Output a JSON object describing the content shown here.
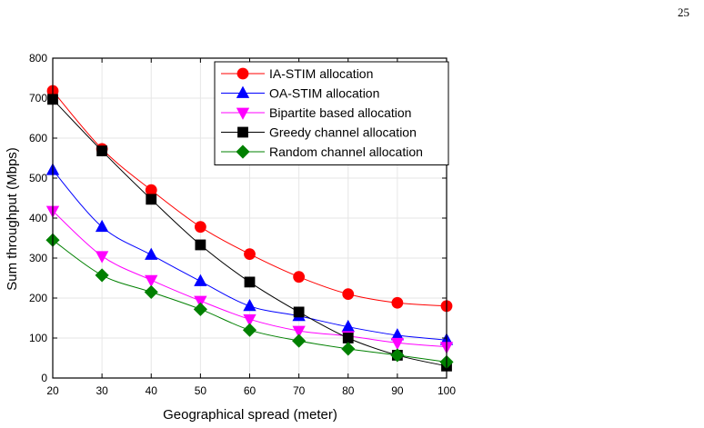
{
  "page": {
    "number": "25"
  },
  "chart_data": {
    "type": "line",
    "xlabel": "Geographical spread (meter)",
    "ylabel": "Sum throughput (Mbps)",
    "x": [
      20,
      30,
      40,
      50,
      60,
      70,
      80,
      90,
      100
    ],
    "xlim": [
      20,
      100
    ],
    "ylim": [
      0,
      800
    ],
    "xticks": [
      20,
      30,
      40,
      50,
      60,
      70,
      80,
      90,
      100
    ],
    "yticks": [
      0,
      100,
      200,
      300,
      400,
      500,
      600,
      700,
      800
    ],
    "grid": true,
    "legend_position": "top-right",
    "series": [
      {
        "name": "IA-STIM allocation",
        "color": "#ff0000",
        "marker": "circle",
        "values": [
          718,
          573,
          470,
          378,
          310,
          253,
          210,
          188,
          180
        ]
      },
      {
        "name": "OA-STIM allocation",
        "color": "#0000ff",
        "marker": "triangle-up",
        "values": [
          520,
          378,
          308,
          242,
          180,
          155,
          128,
          107,
          95
        ]
      },
      {
        "name": "Bipartite based allocation",
        "color": "#ff00ff",
        "marker": "triangle-down",
        "values": [
          418,
          305,
          245,
          193,
          147,
          118,
          105,
          88,
          78
        ]
      },
      {
        "name": "Greedy channel allocation",
        "color": "#000000",
        "marker": "square",
        "values": [
          697,
          568,
          447,
          333,
          240,
          165,
          100,
          57,
          30
        ]
      },
      {
        "name": "Random channel allocation",
        "color": "#008000",
        "marker": "diamond",
        "values": [
          345,
          257,
          215,
          172,
          120,
          93,
          73,
          57,
          40
        ]
      }
    ]
  }
}
